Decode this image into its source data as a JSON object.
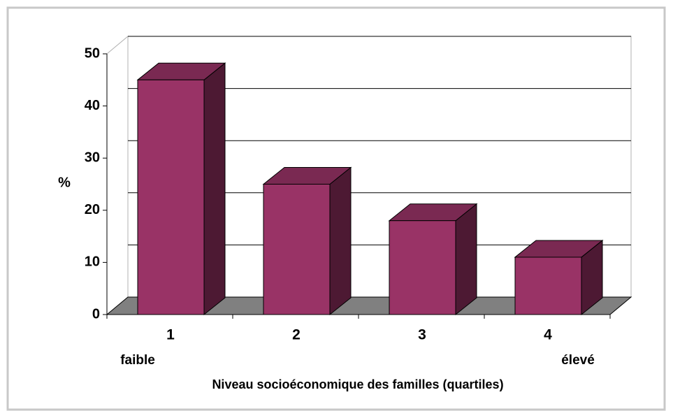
{
  "chart_data": {
    "type": "bar3d",
    "categories": [
      "1",
      "2",
      "3",
      "4"
    ],
    "values": [
      45,
      25,
      18,
      11
    ],
    "color": "#993366",
    "ylim": [
      0,
      50
    ],
    "yticks": [
      0,
      10,
      20,
      30,
      40,
      50
    ],
    "grid": true,
    "y_label": "%",
    "x_label": "Niveau socioéconomique des familles (quartiles)",
    "annotations": [
      "faible",
      "élevé"
    ]
  }
}
